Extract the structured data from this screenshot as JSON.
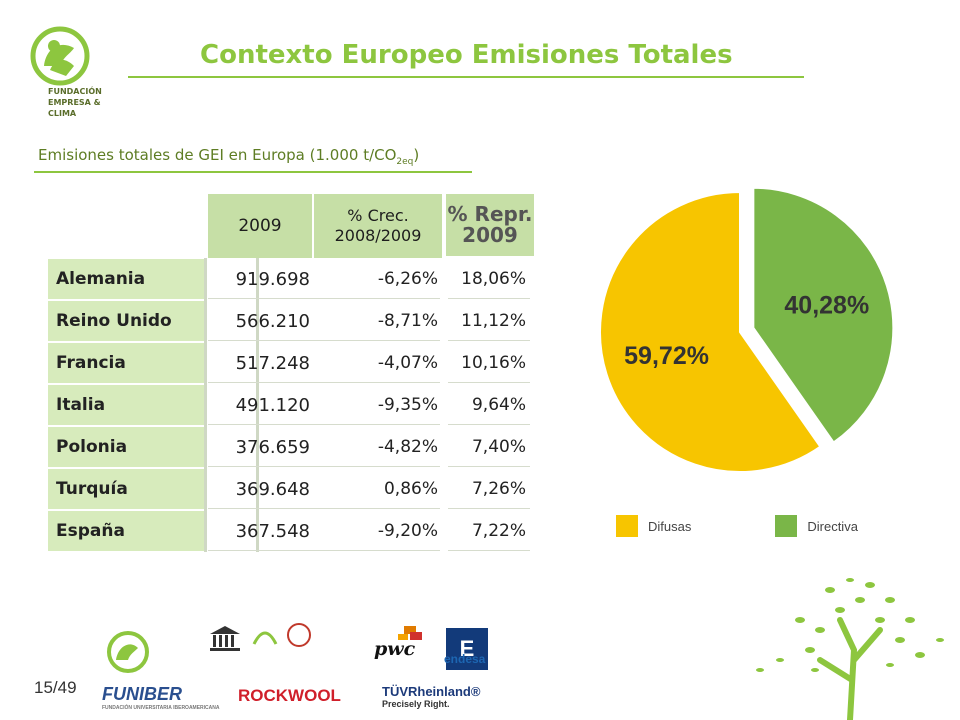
{
  "header": {
    "title": "Contexto Europeo Emisiones Totales",
    "subtitle_main": "Emisiones totales de GEI en Europa (1.000 t/CO",
    "subtitle_sub": "2eq",
    "subtitle_close": ")",
    "logo_lines": [
      "FUNDACIÓN",
      "EMPRESA &",
      "CLIMA"
    ]
  },
  "table": {
    "headers": {
      "year": "2009",
      "crec": "% Crec. 2008/2009",
      "repr": "% Repr. 2009"
    },
    "rows": [
      {
        "country": "Alemania",
        "value": "919.698",
        "crec": "-6,26%",
        "repr": "18,06%"
      },
      {
        "country": "Reino Unido",
        "value": "566.210",
        "crec": "-8,71%",
        "repr": "11,12%"
      },
      {
        "country": "Francia",
        "value": "517.248",
        "crec": "-4,07%",
        "repr": "10,16%"
      },
      {
        "country": "Italia",
        "value": "491.120",
        "crec": "-9,35%",
        "repr": "9,64%"
      },
      {
        "country": "Polonia",
        "value": "376.659",
        "crec": "-4,82%",
        "repr": "7,40%"
      },
      {
        "country": "Turquía",
        "value": "369.648",
        "crec": "0,86%",
        "repr": "7,26%"
      },
      {
        "country": "España",
        "value": "367.548",
        "crec": "-9,20%",
        "repr": "7,22%"
      }
    ]
  },
  "chart_data": [
    {
      "type": "table",
      "columns": [
        "",
        "2009",
        "% Crec. 2008/2009",
        "% Repr. 2009"
      ],
      "rows": [
        [
          "Alemania",
          919698,
          -6.26,
          18.06
        ],
        [
          "Reino Unido",
          566210,
          -8.71,
          11.12
        ],
        [
          "Francia",
          517248,
          -4.07,
          10.16
        ],
        [
          "Italia",
          491120,
          -9.35,
          9.64
        ],
        [
          "Polonia",
          376659,
          -4.82,
          7.4
        ],
        [
          "Turquía",
          369648,
          0.86,
          7.26
        ],
        [
          "España",
          367548,
          -9.2,
          7.22
        ]
      ]
    },
    {
      "type": "pie",
      "slices": [
        {
          "label": "Difusas",
          "value": 59.72,
          "display": "59,72%",
          "color": "#f7c500"
        },
        {
          "label": "Directiva",
          "value": 40.28,
          "display": "40,28%",
          "color": "#7ab648",
          "exploded": true
        }
      ],
      "legend": "bottom"
    }
  ],
  "footer": {
    "page_number": "15/49",
    "logos": {
      "funiber": "FUNIBER",
      "funiber_caption": "FUNDACIÓN UNIVERSITARIA IBEROAMERICANA",
      "rockwool": "ROCKWOOL",
      "tuv_brand": "TÜVRheinland®",
      "tuv_tagline": "Precisely Right.",
      "pwc": "pwc",
      "endesa": "endesa",
      "endesa_mark": "E"
    }
  },
  "colors": {
    "accent": "#8dc63f",
    "header_fill": "#c6dfa6",
    "country_fill": "#d7ebbc",
    "difusas": "#f7c500",
    "directiva": "#7ab648"
  }
}
